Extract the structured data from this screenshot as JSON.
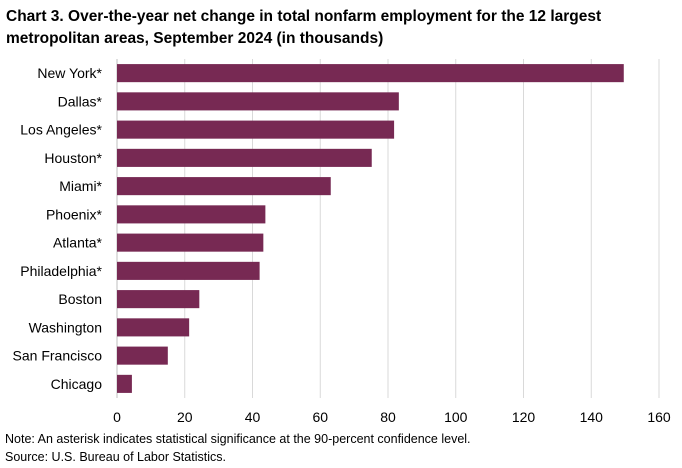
{
  "chart_data": {
    "type": "bar",
    "orientation": "horizontal",
    "title": "Chart 3. Over-the-year net change in total nonfarm employment for the 12 largest metropolitan areas, September 2024 (in thousands)",
    "categories": [
      "New York*",
      "Dallas*",
      "Los Angeles*",
      "Houston*",
      "Miami*",
      "Phoenix*",
      "Atlanta*",
      "Philadelphia*",
      "Boston",
      "Washington",
      "San Francisco",
      "Chicago"
    ],
    "values": [
      149.6,
      83.2,
      81.8,
      75.2,
      63.1,
      43.8,
      43.2,
      42.1,
      24.3,
      21.3,
      15.0,
      4.4
    ],
    "xlim": [
      0,
      160
    ],
    "xticks": [
      0,
      20,
      40,
      60,
      80,
      100,
      120,
      140,
      160
    ],
    "xlabel": "",
    "ylabel": "",
    "grid": "vertical",
    "bar_color": "#772953",
    "grid_color": "#d9d9d9",
    "axis_color": "#bfbfbf"
  },
  "notes": [
    "Note: An asterisk indicates statistical significance at the 90-percent confidence level.",
    "Source: U.S. Bureau of Labor Statistics."
  ]
}
